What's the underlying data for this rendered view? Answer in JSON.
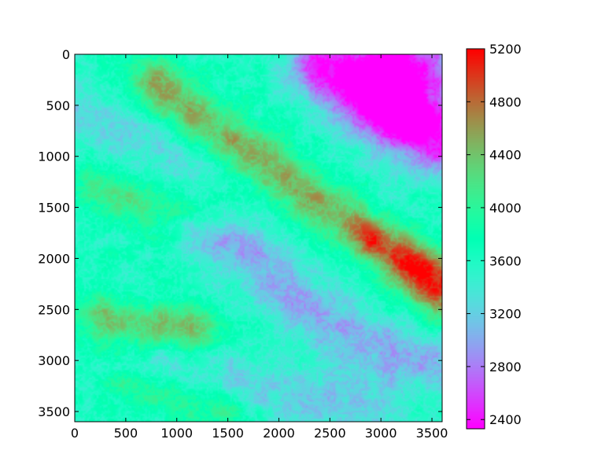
{
  "chart_data": {
    "type": "heatmap",
    "title": "",
    "xlabel": "",
    "ylabel": "",
    "colormap": "rainbow",
    "xlim": [
      0,
      3600
    ],
    "ylim": [
      3600,
      0
    ],
    "x_ticks": [
      0,
      500,
      1000,
      1500,
      2000,
      2500,
      3000,
      3500
    ],
    "x_tick_labels": [
      "0",
      "500",
      "1000",
      "1500",
      "2000",
      "2500",
      "3000",
      "3500"
    ],
    "y_ticks": [
      0,
      500,
      1000,
      1500,
      2000,
      2500,
      3000,
      3500
    ],
    "y_tick_labels": [
      "0",
      "500",
      "1000",
      "1500",
      "2000",
      "2500",
      "3000",
      "3500"
    ],
    "colorbar": {
      "range": [
        2330,
        5200
      ],
      "ticks": [
        2400,
        2800,
        3200,
        3600,
        4000,
        4400,
        4800,
        5200
      ],
      "tick_labels": [
        "2400",
        "2800",
        "3200",
        "3600",
        "4000",
        "4400",
        "4800",
        "5200"
      ]
    },
    "features": {
      "ridges": [
        {
          "points": [
            [
              800,
              300
            ],
            [
              1300,
              700
            ],
            [
              1800,
              1000
            ],
            [
              2300,
              1400
            ],
            [
              2700,
              1650
            ],
            [
              2900,
              1800
            ],
            [
              3300,
              2000
            ],
            [
              3600,
              2200
            ]
          ],
          "value": 4600,
          "peak": [
            2900,
            1800
          ],
          "peak_value": 5200
        },
        {
          "points": [
            [
              200,
              1300
            ],
            [
              500,
              1400
            ],
            [
              900,
              1500
            ],
            [
              1300,
              1550
            ]
          ],
          "value": 4200
        },
        {
          "points": [
            [
              300,
              2600
            ],
            [
              600,
              2700
            ],
            [
              900,
              2650
            ],
            [
              1200,
              2700
            ]
          ],
          "value": 4500
        },
        {
          "points": [
            [
              500,
              3200
            ],
            [
              1000,
              3350
            ],
            [
              1500,
              3500
            ]
          ],
          "value": 4200
        },
        {
          "points": [
            [
              3250,
              2100
            ],
            [
              3500,
              2350
            ],
            [
              3600,
              2450
            ]
          ],
          "value": 4500
        }
      ],
      "valleys": [
        {
          "points": [
            [
              1300,
              1700
            ],
            [
              1800,
              2050
            ],
            [
              2300,
              2500
            ],
            [
              2800,
              2800
            ],
            [
              3300,
              2950
            ],
            [
              3600,
              3000
            ]
          ],
          "value": 3100
        },
        {
          "points": [
            [
              2400,
              100
            ],
            [
              2900,
              400
            ],
            [
              3300,
              700
            ],
            [
              3600,
              900
            ]
          ],
          "value": 2700
        },
        {
          "points": [
            [
              0,
              600
            ],
            [
              600,
              900
            ],
            [
              1100,
              1000
            ]
          ],
          "value": 3350
        },
        {
          "points": [
            [
              600,
              3000
            ],
            [
              1200,
              3150
            ],
            [
              1800,
              3300
            ],
            [
              2600,
              3400
            ],
            [
              3000,
              3450
            ]
          ],
          "value": 3300
        }
      ],
      "lowland": {
        "center": [
          3200,
          200
        ],
        "value": 2400
      }
    }
  }
}
